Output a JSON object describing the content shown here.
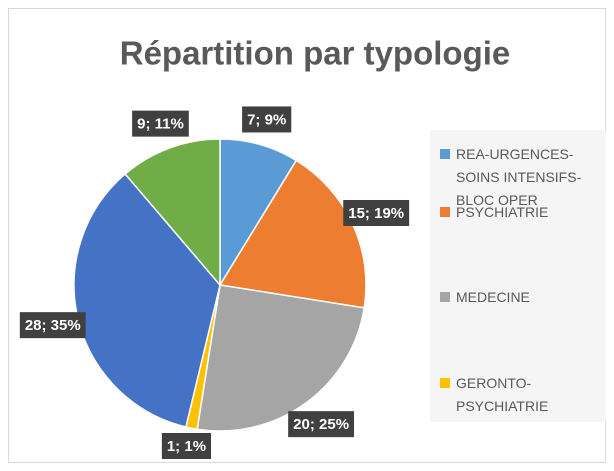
{
  "chart_data": {
    "type": "pie",
    "title": "Répartition par typologie",
    "categories": [
      "REA-URGENCES-SOINS INTENSIFS-BLOC OPER",
      "PSYCHIATRIE",
      "MEDECINE",
      "GERONTO-PSYCHIATRIE",
      null,
      null
    ],
    "values": [
      7,
      15,
      20,
      1,
      28,
      9
    ],
    "value_labels": [
      "7; 9%",
      "15; 19%",
      "20; 25%",
      "1; 1%",
      "28; 35%",
      "9; 11%"
    ],
    "colors": [
      "#5b9bd5",
      "#ed7d31",
      "#a5a5a5",
      "#ffc000",
      "#4472c4",
      "#70ad47"
    ]
  }
}
